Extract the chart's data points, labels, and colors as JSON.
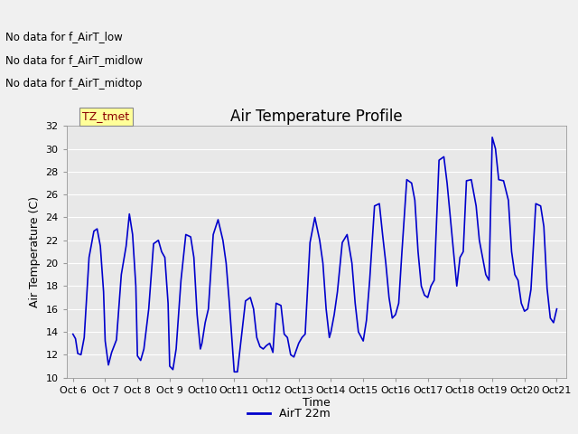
{
  "title": "Air Temperature Profile",
  "xlabel": "Time",
  "ylabel": "Air Temperature (C)",
  "ylim": [
    10,
    32
  ],
  "yticks": [
    10,
    12,
    14,
    16,
    18,
    20,
    22,
    24,
    26,
    28,
    30,
    32
  ],
  "line_color": "#0000cc",
  "legend_label": "AirT 22m",
  "annotations": [
    "No data for f_AirT_low",
    "No data for f_AirT_midlow",
    "No data for f_AirT_midtop"
  ],
  "annotation_color": "#000000",
  "annotation_fontsize": 8.5,
  "tz_label": "TZ_tmet",
  "tz_color": "#8b0000",
  "tz_bg": "#ffff99",
  "background_color": "#e8e8e8",
  "grid_color": "#ffffff",
  "title_fontsize": 12,
  "x_dates": [
    "Oct 6",
    "Oct 7",
    "Oct 8",
    "Oct 9",
    "Oct 10",
    "Oct 11",
    "Oct 12",
    "Oct 13",
    "Oct 14",
    "Oct 15",
    "Oct 16",
    "Oct 17",
    "Oct 18",
    "Oct 19",
    "Oct 20",
    "Oct 21"
  ],
  "time_series": [
    [
      0.0,
      13.8
    ],
    [
      0.08,
      13.4
    ],
    [
      0.15,
      12.1
    ],
    [
      0.25,
      12.0
    ],
    [
      0.35,
      13.5
    ],
    [
      0.5,
      20.5
    ],
    [
      0.65,
      22.8
    ],
    [
      0.75,
      23.0
    ],
    [
      0.85,
      21.5
    ],
    [
      0.95,
      17.5
    ],
    [
      1.0,
      13.2
    ],
    [
      1.1,
      11.1
    ],
    [
      1.2,
      12.2
    ],
    [
      1.35,
      13.3
    ],
    [
      1.5,
      19.0
    ],
    [
      1.65,
      21.5
    ],
    [
      1.75,
      24.3
    ],
    [
      1.85,
      22.5
    ],
    [
      1.95,
      18.0
    ],
    [
      2.0,
      11.9
    ],
    [
      2.1,
      11.5
    ],
    [
      2.2,
      12.5
    ],
    [
      2.35,
      16.0
    ],
    [
      2.5,
      21.7
    ],
    [
      2.65,
      22.0
    ],
    [
      2.75,
      21.0
    ],
    [
      2.85,
      20.5
    ],
    [
      2.95,
      16.5
    ],
    [
      3.0,
      11.0
    ],
    [
      3.1,
      10.7
    ],
    [
      3.2,
      12.5
    ],
    [
      3.35,
      18.5
    ],
    [
      3.5,
      22.5
    ],
    [
      3.65,
      22.3
    ],
    [
      3.75,
      20.5
    ],
    [
      3.85,
      15.5
    ],
    [
      3.95,
      12.5
    ],
    [
      4.0,
      13.0
    ],
    [
      4.1,
      14.8
    ],
    [
      4.2,
      16.0
    ],
    [
      4.35,
      22.5
    ],
    [
      4.5,
      23.8
    ],
    [
      4.65,
      22.0
    ],
    [
      4.75,
      20.0
    ],
    [
      4.85,
      16.5
    ],
    [
      5.0,
      10.5
    ],
    [
      5.1,
      10.5
    ],
    [
      5.2,
      13.0
    ],
    [
      5.35,
      16.7
    ],
    [
      5.5,
      17.0
    ],
    [
      5.6,
      16.0
    ],
    [
      5.7,
      13.5
    ],
    [
      5.8,
      12.7
    ],
    [
      5.9,
      12.5
    ],
    [
      6.0,
      12.8
    ],
    [
      6.1,
      13.0
    ],
    [
      6.2,
      12.2
    ],
    [
      6.3,
      16.5
    ],
    [
      6.45,
      16.3
    ],
    [
      6.55,
      13.8
    ],
    [
      6.65,
      13.5
    ],
    [
      6.75,
      12.0
    ],
    [
      6.85,
      11.8
    ],
    [
      7.0,
      13.0
    ],
    [
      7.1,
      13.5
    ],
    [
      7.2,
      13.8
    ],
    [
      7.35,
      21.8
    ],
    [
      7.5,
      24.0
    ],
    [
      7.65,
      22.0
    ],
    [
      7.75,
      20.0
    ],
    [
      7.85,
      16.0
    ],
    [
      7.95,
      13.5
    ],
    [
      8.0,
      14.0
    ],
    [
      8.1,
      15.5
    ],
    [
      8.2,
      17.5
    ],
    [
      8.35,
      21.8
    ],
    [
      8.5,
      22.5
    ],
    [
      8.65,
      20.0
    ],
    [
      8.75,
      16.5
    ],
    [
      8.85,
      14.0
    ],
    [
      9.0,
      13.2
    ],
    [
      9.1,
      15.0
    ],
    [
      9.2,
      18.5
    ],
    [
      9.35,
      25.0
    ],
    [
      9.5,
      25.2
    ],
    [
      9.6,
      22.5
    ],
    [
      9.7,
      20.0
    ],
    [
      9.8,
      17.0
    ],
    [
      9.9,
      15.2
    ],
    [
      10.0,
      15.5
    ],
    [
      10.1,
      16.5
    ],
    [
      10.2,
      21.0
    ],
    [
      10.35,
      27.3
    ],
    [
      10.5,
      27.0
    ],
    [
      10.6,
      25.5
    ],
    [
      10.7,
      21.0
    ],
    [
      10.8,
      18.0
    ],
    [
      10.9,
      17.2
    ],
    [
      11.0,
      17.0
    ],
    [
      11.1,
      18.0
    ],
    [
      11.2,
      18.5
    ],
    [
      11.35,
      29.0
    ],
    [
      11.5,
      29.3
    ],
    [
      11.6,
      27.0
    ],
    [
      11.7,
      24.0
    ],
    [
      11.8,
      21.0
    ],
    [
      11.9,
      18.0
    ],
    [
      12.0,
      20.5
    ],
    [
      12.1,
      21.0
    ],
    [
      12.2,
      27.2
    ],
    [
      12.35,
      27.3
    ],
    [
      12.5,
      25.0
    ],
    [
      12.6,
      22.0
    ],
    [
      12.7,
      20.5
    ],
    [
      12.8,
      19.0
    ],
    [
      12.9,
      18.5
    ],
    [
      13.0,
      31.0
    ],
    [
      13.1,
      30.0
    ],
    [
      13.2,
      27.3
    ],
    [
      13.35,
      27.2
    ],
    [
      13.5,
      25.5
    ],
    [
      13.6,
      21.0
    ],
    [
      13.7,
      19.0
    ],
    [
      13.8,
      18.5
    ],
    [
      13.9,
      16.5
    ],
    [
      14.0,
      15.8
    ],
    [
      14.1,
      16.0
    ],
    [
      14.2,
      17.7
    ],
    [
      14.35,
      25.2
    ],
    [
      14.5,
      25.0
    ],
    [
      14.6,
      23.2
    ],
    [
      14.7,
      17.8
    ],
    [
      14.8,
      15.2
    ],
    [
      14.9,
      14.8
    ],
    [
      15.0,
      16.0
    ]
  ]
}
